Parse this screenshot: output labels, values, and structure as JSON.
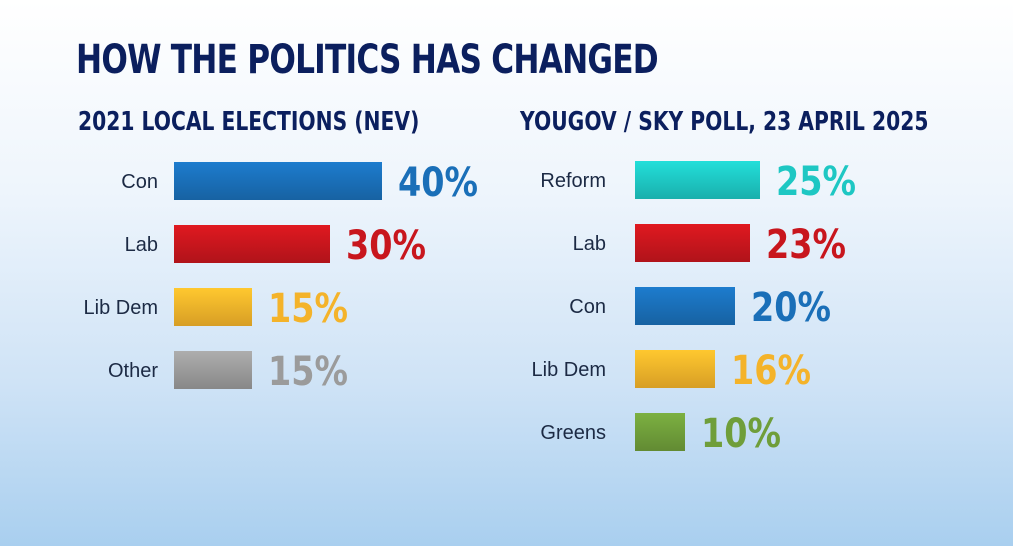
{
  "title": "HOW THE POLITICS HAS CHANGED",
  "chart_data": [
    {
      "type": "bar",
      "orientation": "horizontal",
      "title": "2021 LOCAL ELECTIONS (NEV)",
      "categories": [
        "Con",
        "Lab",
        "Lib Dem",
        "Other"
      ],
      "values": [
        40,
        30,
        15,
        15
      ],
      "value_labels": [
        "40%",
        "30%",
        "15%",
        "15%"
      ],
      "colors": [
        "#1a6fb8",
        "#c8161d",
        "#f4b32a",
        "#9b9b9b"
      ],
      "unit": "%",
      "grid": false
    },
    {
      "type": "bar",
      "orientation": "horizontal",
      "title": "YOUGOV / SKY POLL, 23 APRIL 2025",
      "categories": [
        "Reform",
        "Lab",
        "Con",
        "Lib Dem",
        "Greens"
      ],
      "values": [
        25,
        23,
        20,
        16,
        10
      ],
      "value_labels": [
        "25%",
        "23%",
        "20%",
        "16%",
        "10%"
      ],
      "colors": [
        "#1ec7c3",
        "#c8161d",
        "#1a6fb8",
        "#f4b32a",
        "#6f9e3a"
      ],
      "unit": "%",
      "grid": false
    }
  ]
}
